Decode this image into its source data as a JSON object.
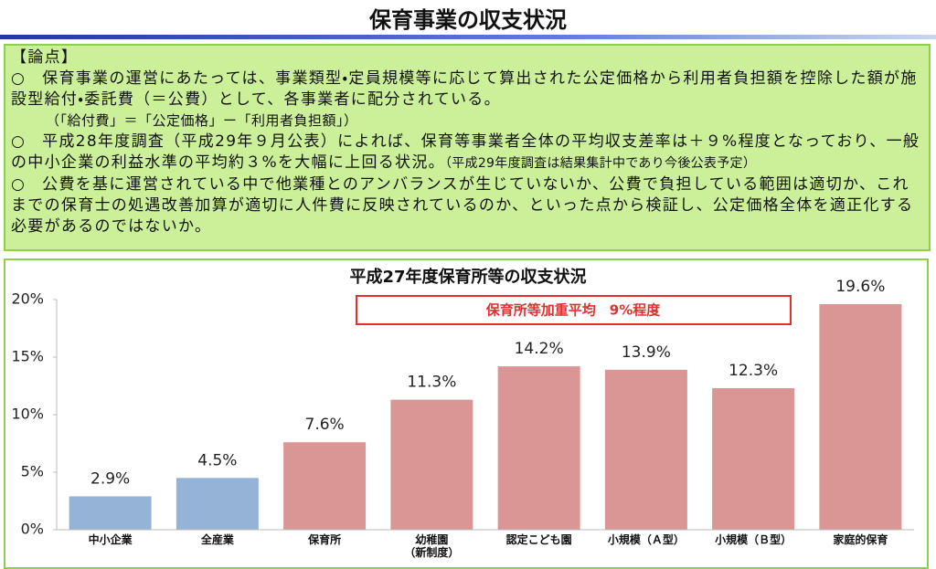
{
  "header": {
    "title": "保育事業の収支状況"
  },
  "notes": {
    "heading": "【論点】",
    "bullet": "○",
    "items": [
      {
        "text": "保育事業の運営にあたっては、事業類型・定員規模等に応じて算出された公定価格から利用者負担額を控除した額が施設型給付・委託費（＝公費）として、各事業者に配分されている。",
        "sub": "（「給付費」＝「公定価格」ー「利用者負担額」）"
      },
      {
        "text": "平成28年度調査（平成29年９月公表）によれば、保育等事業者全体の平均収支差率は＋９%程度となっており、一般の中小企業の利益水準の平均約３%を大幅に上回る状況。",
        "aside": "（平成29年度調査は結果集計中であり今後公表予定）"
      },
      {
        "text": "公費を基に運営されている中で他業種とのアンバランスが生じていないか、公費で負担している範囲は適切か、これまでの保育士の処遇改善加算が適切に人件費に反映されているのか、といった点から検証し、公定価格全体を適正化する必要があるのではないか。"
      }
    ]
  },
  "chart_data": {
    "type": "bar",
    "title": "平成27年度保育所等の収支状況",
    "annotation": "保育所等加重平均　9%程度",
    "categories": [
      "中小企業",
      "全産業",
      "保育所",
      "幼稚園\n（新制度）",
      "認定こども園",
      "小規模（Ａ型）",
      "小規模（Ｂ型）",
      "家庭的保育"
    ],
    "values": [
      2.9,
      4.5,
      7.6,
      11.3,
      14.2,
      13.9,
      12.3,
      19.6
    ],
    "value_labels": [
      "2.9%",
      "4.5%",
      "7.6%",
      "11.3%",
      "14.2%",
      "13.9%",
      "12.3%",
      "19.6%"
    ],
    "colors": [
      "#95b3d7",
      "#95b3d7",
      "#d99694",
      "#d99694",
      "#d99694",
      "#d99694",
      "#d99694",
      "#d99694"
    ],
    "ylim": [
      0,
      20
    ],
    "yticks": [
      {
        "value": 0,
        "label": "0%"
      },
      {
        "value": 5,
        "label": "5%"
      },
      {
        "value": 10,
        "label": "10%"
      },
      {
        "value": 15,
        "label": "15%"
      },
      {
        "value": 20,
        "label": "20%"
      }
    ],
    "grid": false
  }
}
